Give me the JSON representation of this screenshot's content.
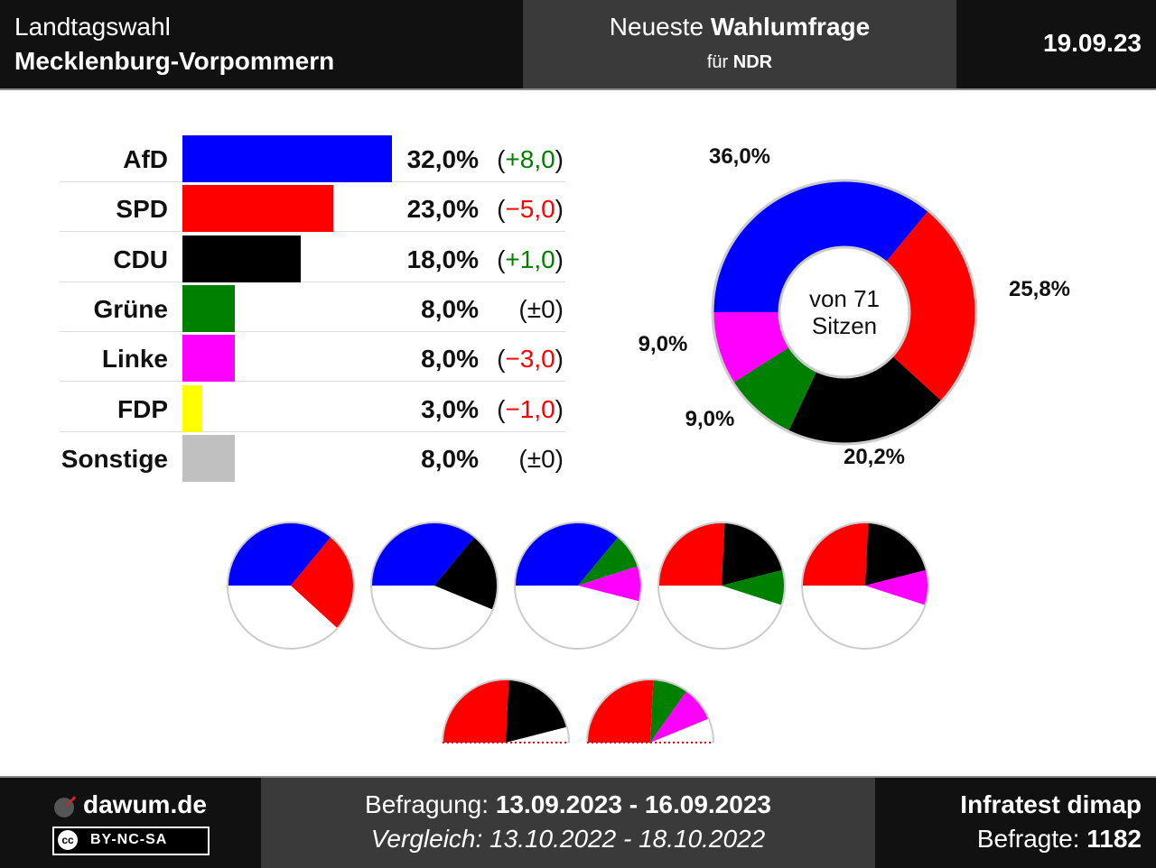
{
  "header": {
    "line1": "Landtagswahl",
    "line2": "Mecklenburg-Vorpommern",
    "mid_prefix": "Neueste ",
    "mid_bold": "Wahlumfrage",
    "sub_prefix": "für ",
    "sub_bold": "NDR",
    "date": "19.09.23"
  },
  "chart_data": [
    {
      "type": "bar",
      "orientation": "horizontal",
      "categories": [
        "AfD",
        "SPD",
        "CDU",
        "Grüne",
        "Linke",
        "FDP",
        "Sonstige"
      ],
      "values": [
        32.0,
        23.0,
        18.0,
        8.0,
        8.0,
        3.0,
        8.0
      ],
      "value_labels": [
        "32,0%",
        "23,0%",
        "18,0%",
        "8,0%",
        "8,0%",
        "3,0%",
        "8,0%"
      ],
      "changes": [
        {
          "text": "+8,0",
          "sign": "pos"
        },
        {
          "text": "−5,0",
          "sign": "neg"
        },
        {
          "text": "+1,0",
          "sign": "pos"
        },
        {
          "text": "±0",
          "sign": "zero"
        },
        {
          "text": "−3,0",
          "sign": "neg"
        },
        {
          "text": "−1,0",
          "sign": "neg"
        },
        {
          "text": "±0",
          "sign": "zero"
        }
      ],
      "colors": [
        "#0000ff",
        "#ff0000",
        "#000000",
        "#008000",
        "#ff00ff",
        "#ffff00",
        "#c0c0c0"
      ],
      "xlim": [
        0,
        32
      ]
    },
    {
      "type": "pie",
      "variant": "donut",
      "labels": [
        "36,0%",
        "25,8%",
        "20,2%",
        "9,0%",
        "9,0%"
      ],
      "values": [
        36.0,
        25.8,
        20.2,
        9.0,
        9.0
      ],
      "colors": [
        "#0000ff",
        "#ff0000",
        "#000000",
        "#008000",
        "#ff00ff"
      ],
      "center_line1": "von 71",
      "center_line2": "Sitzen"
    },
    {
      "type": "pie",
      "variant": "coalitions",
      "note": "each circle: colored slices = party seat shares, white = remainder",
      "coalitions": [
        {
          "values": [
            36.0,
            25.8
          ],
          "colors": [
            "#0000ff",
            "#ff0000"
          ]
        },
        {
          "values": [
            36.0,
            20.2
          ],
          "colors": [
            "#0000ff",
            "#000000"
          ]
        },
        {
          "values": [
            36.0,
            9.0,
            9.0
          ],
          "colors": [
            "#0000ff",
            "#008000",
            "#ff00ff"
          ]
        },
        {
          "values": [
            25.8,
            20.2,
            9.0
          ],
          "colors": [
            "#ff0000",
            "#000000",
            "#008000"
          ]
        },
        {
          "values": [
            25.8,
            20.2,
            9.0
          ],
          "colors": [
            "#ff0000",
            "#000000",
            "#ff00ff"
          ]
        },
        {
          "values": [
            25.8,
            20.2
          ],
          "colors": [
            "#ff0000",
            "#000000"
          ],
          "half": true
        },
        {
          "values": [
            25.8,
            9.0,
            9.0
          ],
          "colors": [
            "#ff0000",
            "#008000",
            "#ff00ff"
          ],
          "half": true
        }
      ]
    }
  ],
  "footer": {
    "brand": "dawum.de",
    "license": "BY-NC-SA",
    "cc": "cc",
    "survey_label": "Befragung: ",
    "survey_dates": "13.09.2023 - 16.09.2023",
    "compare_label": "Vergleich: ",
    "compare_dates": "13.10.2022 - 18.10.2022",
    "institute": "Infratest dimap",
    "respondents_label": "Befragte: ",
    "respondents": "1182"
  },
  "colors": {
    "positive": "#008000",
    "negative": "#ff0000",
    "header_bg": "#111111",
    "header_mid_bg": "#3a3a3a"
  }
}
